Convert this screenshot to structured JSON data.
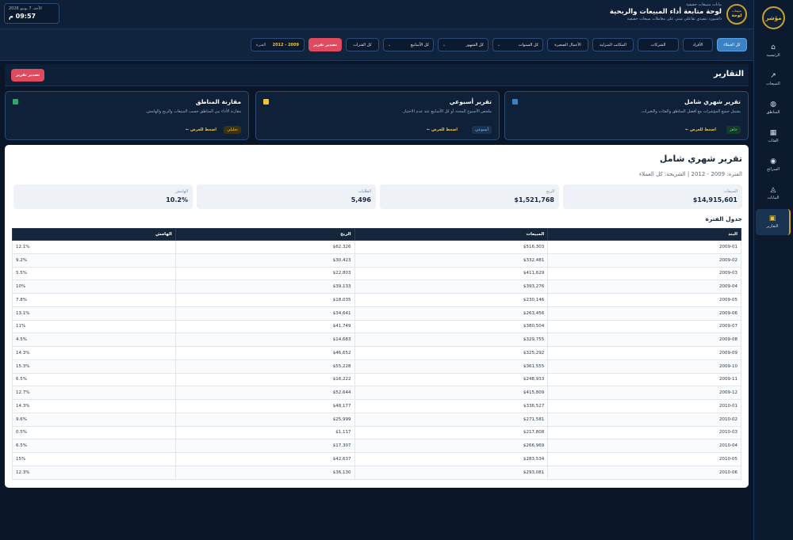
{
  "sidebar": {
    "brand": "مؤشر",
    "items": [
      {
        "label": "الرئيسية",
        "icon": "home-icon",
        "glyph": "⌂"
      },
      {
        "label": "المبيعات",
        "icon": "trend-icon",
        "glyph": "↗"
      },
      {
        "label": "المناطق",
        "icon": "globe-icon",
        "glyph": "◍"
      },
      {
        "label": "الفئات",
        "icon": "grid-icon",
        "glyph": "▦"
      },
      {
        "label": "السرائح",
        "icon": "target-icon",
        "glyph": "◉"
      },
      {
        "label": "البيانات",
        "icon": "data-icon",
        "glyph": "◬"
      },
      {
        "label": "التقارير",
        "icon": "report-icon",
        "glyph": "▣"
      }
    ]
  },
  "header": {
    "badge_top": "مبيعات",
    "badge_bottom": "لوحة",
    "subtitle": "بيانات سبيعات حقيقية",
    "title": "لوحة متابعة أداء المبيعات والربحية",
    "description": "داشبورد تنفيذي تفاعلي مبني على معاملات مبيعات حقيقية",
    "date": "الأحد، 7 يونيو 2026",
    "time": "09:57 م"
  },
  "filters": {
    "segments": [
      "كل العملاء",
      "الأفراد",
      "الشركات",
      "المكاتب المنزلية",
      "الأعمال الصغيرة"
    ],
    "selects": [
      "كل السنوات",
      "كل الشهور",
      "كل الأسابيع",
      "كل الفترات"
    ],
    "export_label": "تصدير تقرير",
    "period_label": "الفترة",
    "period_value": "2009 - 2012"
  },
  "reports": {
    "title": "التقارير",
    "export_label": "تصدير تقرير",
    "cards": [
      {
        "title": "تقرير شهري شامل",
        "desc": "يشمل جميع المؤشرات مع أفضل المناطق والفئات والتغيرات.",
        "badge": "جاهز",
        "link": "اضغط للعرض ←",
        "color": "#3b82c4"
      },
      {
        "title": "تقرير أسبوعي",
        "desc": "ملخص الأسبوع المحدد أو كل الأسابيع عند عدم الاختيار.",
        "badge": "أسبوعي",
        "link": "اضغط للعرض ←",
        "color": "#f1c232"
      },
      {
        "title": "مقارنة المناطق",
        "desc": "مقارنة الأداء بين المناطق حسب المبيعات والربح والهامش.",
        "badge": "تحليلي",
        "link": "اضغط للعرض ←",
        "color": "#2ea86b"
      }
    ]
  },
  "panel": {
    "title": "تقرير شهري شامل",
    "meta": "الفترة: 2009 - 2012 | الشريحة: كل العملاء",
    "kpis": [
      {
        "label": "المبيعات",
        "value": "$14,915,601"
      },
      {
        "label": "الربح",
        "value": "$1,521,768"
      },
      {
        "label": "الطلبات",
        "value": "5,496"
      },
      {
        "label": "الهامش",
        "value": "10.2%"
      }
    ],
    "table_title": "جدول الفترة",
    "columns": [
      "البند",
      "المبيعات",
      "الربح",
      "الهامش"
    ],
    "rows": [
      [
        "2009-01",
        "$516,303",
        "$62,326",
        "12.1%"
      ],
      [
        "2009-02",
        "$332,481",
        "$30,423",
        "9.2%"
      ],
      [
        "2009-03",
        "$411,629",
        "$22,803",
        "5.5%"
      ],
      [
        "2009-04",
        "$393,276",
        "$39,133",
        "10%"
      ],
      [
        "2009-05",
        "$230,146",
        "$18,035",
        "7.8%"
      ],
      [
        "2009-06",
        "$263,456",
        "$34,641",
        "13.1%"
      ],
      [
        "2009-07",
        "$380,504",
        "$41,749",
        "11%"
      ],
      [
        "2009-08",
        "$329,755",
        "$14,683",
        "4.5%"
      ],
      [
        "2009-09",
        "$325,292",
        "$46,652",
        "14.3%"
      ],
      [
        "2009-10",
        "$361,555",
        "$55,228",
        "15.3%"
      ],
      [
        "2009-11",
        "$248,933",
        "$16,222",
        "6.5%"
      ],
      [
        "2009-12",
        "$415,809",
        "$52,644",
        "12.7%"
      ],
      [
        "2010-01",
        "$336,527",
        "$48,177",
        "14.3%"
      ],
      [
        "2010-02",
        "$271,581",
        "$25,999",
        "9.6%"
      ],
      [
        "2010-03",
        "$217,808",
        "$1,117",
        "0.5%"
      ],
      [
        "2010-04",
        "$266,969",
        "$17,307",
        "6.5%"
      ],
      [
        "2010-05",
        "$283,534",
        "$42,637",
        "15%"
      ],
      [
        "2010-06",
        "$293,081",
        "$36,130",
        "12.3%"
      ]
    ]
  }
}
